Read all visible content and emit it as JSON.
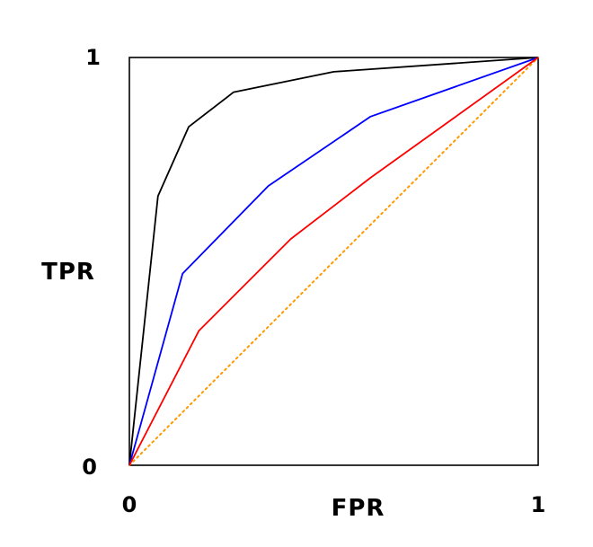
{
  "chart_data": {
    "type": "line",
    "title": "",
    "xlabel": "FPR",
    "ylabel": "TPR",
    "xlim": [
      0,
      1
    ],
    "ylim": [
      0,
      1
    ],
    "x_ticks": [
      "0",
      "1"
    ],
    "y_ticks": [
      "0",
      "1"
    ],
    "grid": false,
    "legend": "none",
    "series": [
      {
        "color": "#000000",
        "style": "solid",
        "x": [
          0,
          0.07,
          0.145,
          0.255,
          0.5,
          1
        ],
        "y": [
          0,
          0.66,
          0.83,
          0.915,
          0.965,
          1
        ]
      },
      {
        "color": "#0000ff",
        "style": "solid",
        "x": [
          0,
          0.13,
          0.34,
          0.59,
          1
        ],
        "y": [
          0,
          0.47,
          0.685,
          0.855,
          1
        ]
      },
      {
        "color": "#ff0000",
        "style": "solid",
        "x": [
          0,
          0.17,
          0.395,
          0.59,
          1
        ],
        "y": [
          0,
          0.33,
          0.555,
          0.705,
          1
        ]
      },
      {
        "color": "#ff9900",
        "style": "dotted",
        "x": [
          0,
          1
        ],
        "y": [
          0,
          1
        ]
      }
    ]
  }
}
